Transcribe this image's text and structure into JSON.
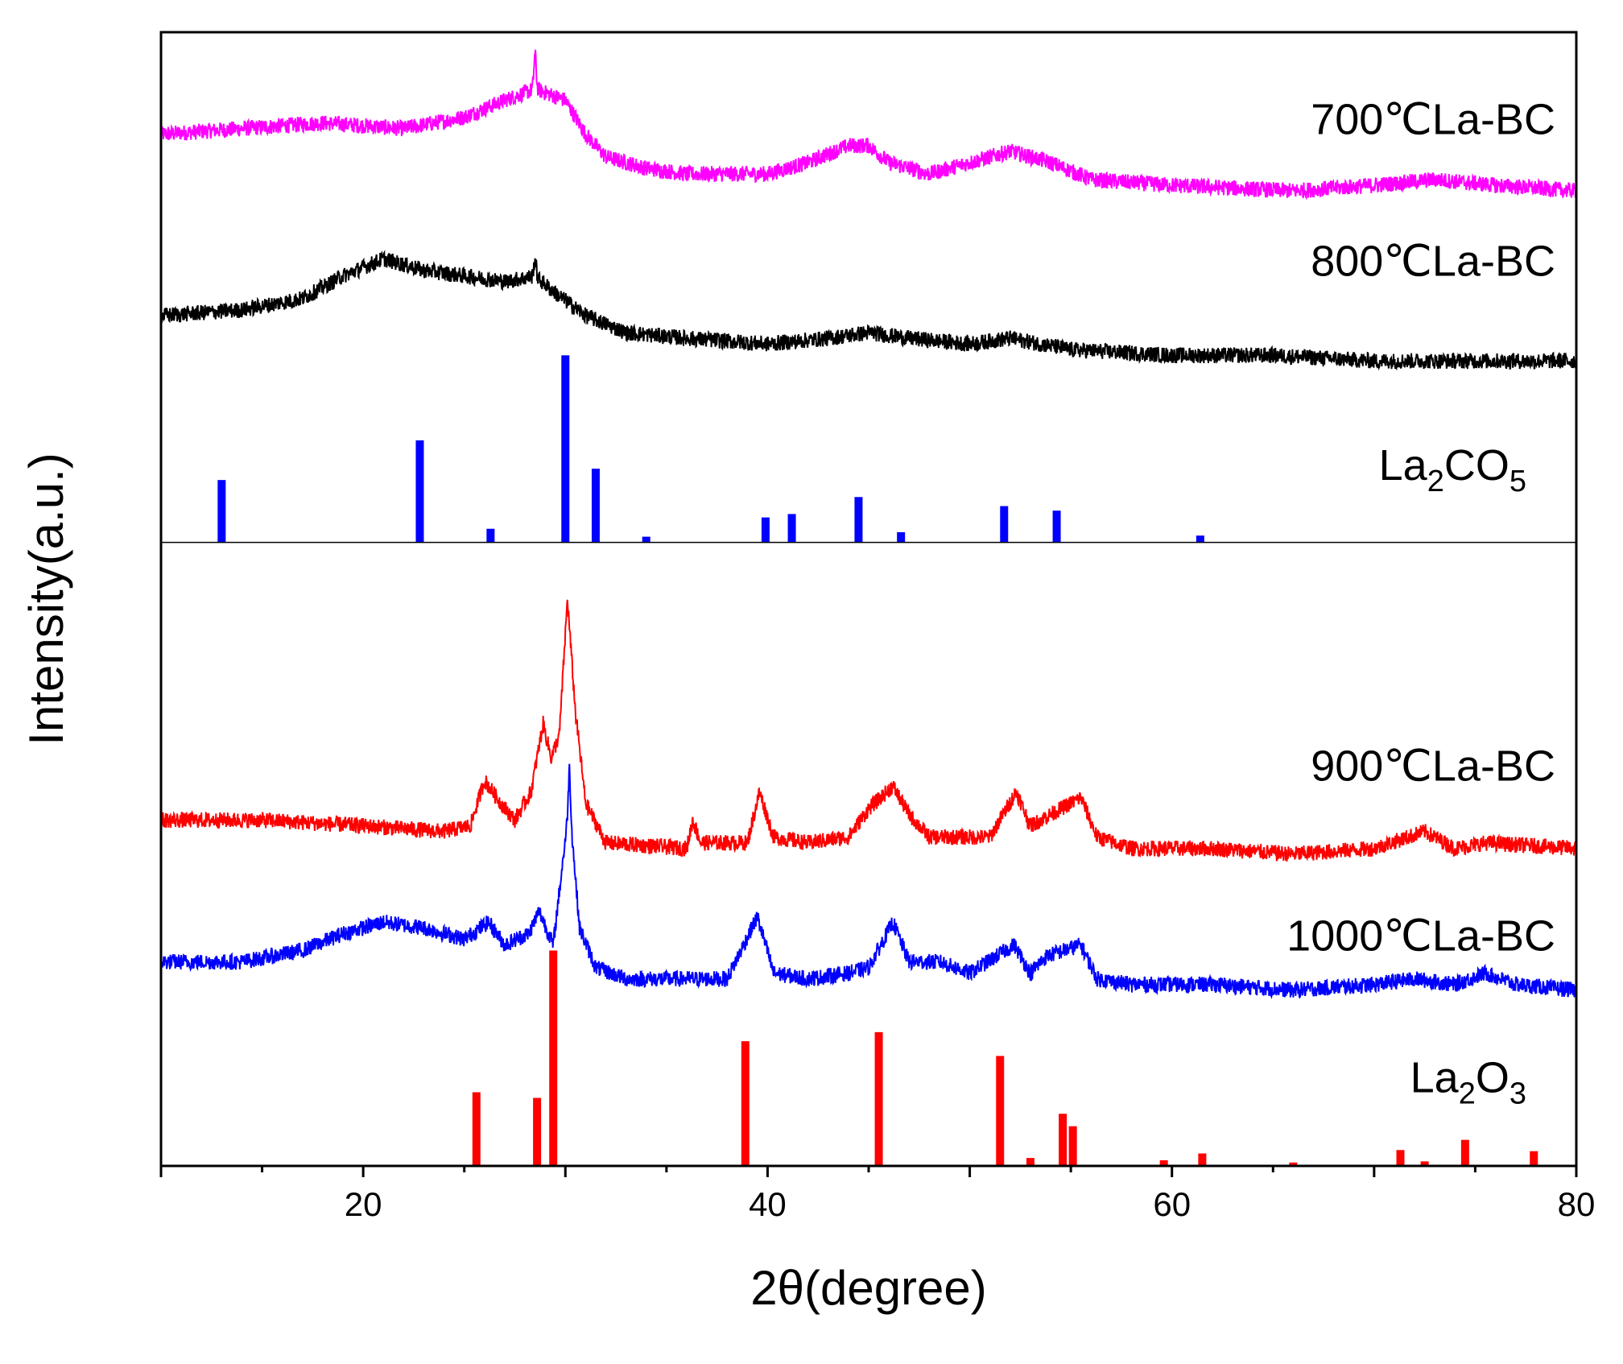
{
  "chart_data": {
    "type": "line",
    "title": "",
    "xlabel": "2θ(degree)",
    "ylabel": "Intensity(a.u.)",
    "xlim": [
      10,
      80
    ],
    "xticks": [
      20,
      40,
      60,
      80
    ],
    "xtick_labels": [
      "20",
      "40",
      "60",
      "80"
    ],
    "y_units": "a.u. (stacked, arbitrary)",
    "ylim": [
      0,
      100
    ],
    "divider_y": 55,
    "series": [
      {
        "name": "700℃La-BC",
        "label": "700℃La-BC",
        "color": "#ff00ff",
        "baseline": 86,
        "label_y": 91,
        "profile": [
          [
            10,
            91
          ],
          [
            14,
            91.5
          ],
          [
            18,
            92
          ],
          [
            22,
            91.5
          ],
          [
            25,
            92.5
          ],
          [
            27,
            94
          ],
          [
            28.5,
            95
          ],
          [
            30,
            94
          ],
          [
            31,
            91
          ],
          [
            32,
            89
          ],
          [
            34,
            88
          ],
          [
            36,
            87.5
          ],
          [
            40,
            87.5
          ],
          [
            42,
            88.5
          ],
          [
            44,
            90
          ],
          [
            45,
            90
          ],
          [
            46,
            88.5
          ],
          [
            48,
            87.5
          ],
          [
            50,
            88.5
          ],
          [
            52,
            89.5
          ],
          [
            54,
            88.5
          ],
          [
            56,
            87
          ],
          [
            60,
            86.5
          ],
          [
            66,
            86
          ],
          [
            70,
            86.5
          ],
          [
            73,
            87
          ],
          [
            76,
            86.5
          ],
          [
            80,
            86
          ]
        ],
        "spikes": [
          [
            28.5,
            3
          ]
        ]
      },
      {
        "name": "800℃La-BC",
        "label": "800℃La-BC",
        "color": "#000000",
        "baseline": 71,
        "label_y": 78.5,
        "profile": [
          [
            10,
            75
          ],
          [
            14,
            75.5
          ],
          [
            17,
            76.5
          ],
          [
            19,
            78.5
          ],
          [
            21,
            80
          ],
          [
            23,
            79
          ],
          [
            25,
            78.5
          ],
          [
            27,
            78
          ],
          [
            28.5,
            78.5
          ],
          [
            29.5,
            77
          ],
          [
            31,
            75
          ],
          [
            33,
            73.5
          ],
          [
            36,
            73
          ],
          [
            40,
            72.5
          ],
          [
            43,
            73
          ],
          [
            45,
            73.5
          ],
          [
            47,
            73
          ],
          [
            50,
            72.5
          ],
          [
            52,
            73
          ],
          [
            55,
            72
          ],
          [
            60,
            71.5
          ],
          [
            65,
            71.5
          ],
          [
            70,
            71
          ],
          [
            75,
            71
          ],
          [
            80,
            71
          ]
        ],
        "spikes": [
          [
            28.5,
            1.5
          ]
        ]
      },
      {
        "name": "900℃La-BC",
        "label": "900℃La-BC",
        "color": "#ff0000",
        "baseline": 27.5,
        "label_y": 34,
        "profile": [
          [
            10,
            30.5
          ],
          [
            15,
            30.5
          ],
          [
            20,
            30
          ],
          [
            24,
            29.5
          ],
          [
            25.3,
            30
          ],
          [
            26,
            34
          ],
          [
            26.8,
            32
          ],
          [
            27.5,
            30.5
          ],
          [
            28.3,
            33
          ],
          [
            28.9,
            39
          ],
          [
            29.3,
            36
          ],
          [
            29.7,
            38
          ],
          [
            30.1,
            50
          ],
          [
            30.5,
            40
          ],
          [
            31,
            32
          ],
          [
            32,
            28.5
          ],
          [
            36,
            28
          ],
          [
            36.3,
            30.5
          ],
          [
            36.7,
            28.5
          ],
          [
            39,
            28.5
          ],
          [
            39.6,
            33
          ],
          [
            40.3,
            29
          ],
          [
            42,
            28.5
          ],
          [
            44,
            29
          ],
          [
            45,
            31.5
          ],
          [
            46.2,
            33.5
          ],
          [
            47,
            31
          ],
          [
            48,
            29
          ],
          [
            51,
            29
          ],
          [
            52.3,
            33
          ],
          [
            53,
            30
          ],
          [
            54,
            31
          ],
          [
            55.5,
            32.5
          ],
          [
            56.3,
            29
          ],
          [
            58,
            28
          ],
          [
            62,
            28
          ],
          [
            66,
            27.5
          ],
          [
            70,
            28
          ],
          [
            72.5,
            29.5
          ],
          [
            74,
            28
          ],
          [
            75.5,
            28.5
          ],
          [
            80,
            28
          ]
        ],
        "spikes": []
      },
      {
        "name": "1000℃La-BC",
        "label": "1000℃La-BC",
        "color": "#0000ff",
        "baseline": 15.5,
        "label_y": 19,
        "profile": [
          [
            10,
            18
          ],
          [
            14,
            18
          ],
          [
            17,
            19
          ],
          [
            19,
            20.5
          ],
          [
            21,
            21.5
          ],
          [
            23,
            21
          ],
          [
            25,
            20
          ],
          [
            26.2,
            21.5
          ],
          [
            27,
            19.5
          ],
          [
            28.2,
            20.5
          ],
          [
            28.7,
            22.5
          ],
          [
            29.4,
            19.5
          ],
          [
            30.2,
            32
          ],
          [
            30.7,
            21
          ],
          [
            31.5,
            17.5
          ],
          [
            33,
            16.5
          ],
          [
            36,
            16.5
          ],
          [
            38,
            16.5
          ],
          [
            39.5,
            22
          ],
          [
            40.3,
            17
          ],
          [
            42,
            16.5
          ],
          [
            44,
            17
          ],
          [
            45,
            17.5
          ],
          [
            46.2,
            21.5
          ],
          [
            47,
            18
          ],
          [
            48.5,
            18
          ],
          [
            50,
            17
          ],
          [
            52.2,
            19.5
          ],
          [
            53,
            17
          ],
          [
            53.8,
            18.5
          ],
          [
            55.5,
            19.5
          ],
          [
            56.3,
            16.5
          ],
          [
            58,
            16
          ],
          [
            62,
            16
          ],
          [
            66,
            15.5
          ],
          [
            70,
            16
          ],
          [
            72,
            16.5
          ],
          [
            74,
            16
          ],
          [
            75.5,
            17
          ],
          [
            77,
            16
          ],
          [
            80,
            15.5
          ]
        ],
        "spikes": [
          [
            30.2,
            3
          ]
        ]
      }
    ],
    "references": [
      {
        "name": "La2CO5",
        "label_base": "La",
        "label_sub1": "2",
        "label_mid": "CO",
        "label_sub2": "5",
        "color": "#0000ff",
        "baseline": 55,
        "label_y": 60.5,
        "peaks": [
          [
            13,
            5.5
          ],
          [
            22.8,
            9
          ],
          [
            26.3,
            1.2
          ],
          [
            30,
            16.5
          ],
          [
            31.5,
            6.5
          ],
          [
            34,
            0.5
          ],
          [
            39.9,
            2.2
          ],
          [
            41.2,
            2.5
          ],
          [
            44.5,
            4
          ],
          [
            46.6,
            0.9
          ],
          [
            51.7,
            3.2
          ],
          [
            54.3,
            2.8
          ],
          [
            61.4,
            0.6
          ]
        ]
      },
      {
        "name": "La2O3",
        "label_base": "La",
        "label_sub1": "2",
        "label_mid": "O",
        "label_sub2": "3",
        "color": "#ff0000",
        "baseline": 0,
        "label_y": 6.5,
        "peaks": [
          [
            25.6,
            6.5
          ],
          [
            28.6,
            6
          ],
          [
            29.4,
            19
          ],
          [
            38.9,
            11
          ],
          [
            45.5,
            11.8
          ],
          [
            51.5,
            9.7
          ],
          [
            53,
            0.7
          ],
          [
            54.6,
            4.6
          ],
          [
            55.1,
            3.5
          ],
          [
            59.6,
            0.5
          ],
          [
            61.5,
            1.1
          ],
          [
            66,
            0.3
          ],
          [
            71.3,
            1.4
          ],
          [
            72.5,
            0.4
          ],
          [
            74.5,
            2.3
          ],
          [
            77.9,
            1.3
          ]
        ]
      }
    ]
  }
}
